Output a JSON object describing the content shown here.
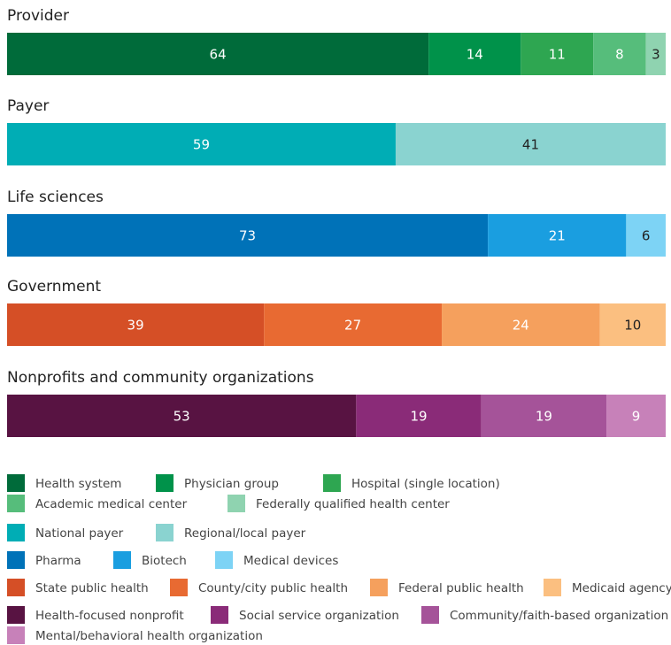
{
  "chart_data": [
    {
      "type": "bar",
      "title": "Provider",
      "xlim": [
        0,
        100
      ],
      "series": [
        {
          "name": "Health system",
          "color": "#006b3a",
          "values": [
            64
          ]
        },
        {
          "name": "Physician group",
          "color": "#00924a",
          "values": [
            14
          ]
        },
        {
          "name": "Hospital (single location)",
          "color": "#2ea651",
          "values": [
            11
          ]
        },
        {
          "name": "Academic medical center",
          "color": "#56bd7b",
          "values": [
            8
          ]
        },
        {
          "name": "Federally qualified health center",
          "color": "#8fd3b0",
          "values": [
            3
          ]
        }
      ]
    },
    {
      "type": "bar",
      "title": "Payer",
      "xlim": [
        0,
        100
      ],
      "series": [
        {
          "name": "National payer",
          "color": "#00adb5",
          "values": [
            59
          ]
        },
        {
          "name": "Regional/local payer",
          "color": "#8ad3d0",
          "values": [
            41
          ]
        }
      ]
    },
    {
      "type": "bar",
      "title": "Life sciences",
      "xlim": [
        0,
        100
      ],
      "series": [
        {
          "name": "Pharma",
          "color": "#0072b8",
          "values": [
            73
          ]
        },
        {
          "name": "Biotech",
          "color": "#1a9ee0",
          "values": [
            21
          ]
        },
        {
          "name": "Medical devices",
          "color": "#7dd3f5",
          "values": [
            6
          ]
        }
      ]
    },
    {
      "type": "bar",
      "title": "Government",
      "xlim": [
        0,
        100
      ],
      "series": [
        {
          "name": "State public health",
          "color": "#d54f26",
          "values": [
            39
          ]
        },
        {
          "name": "County/city public health",
          "color": "#e86a32",
          "values": [
            27
          ]
        },
        {
          "name": "Federal public health",
          "color": "#f5a05d",
          "values": [
            24
          ]
        },
        {
          "name": "Medicaid agency",
          "color": "#fbbf80",
          "values": [
            10
          ]
        }
      ]
    },
    {
      "type": "bar",
      "title": "Nonprofits and community organizations",
      "xlim": [
        0,
        100
      ],
      "series": [
        {
          "name": "Health-focused nonprofit",
          "color": "#581342",
          "values": [
            53
          ]
        },
        {
          "name": "Social service organization",
          "color": "#8a2b78",
          "values": [
            19
          ]
        },
        {
          "name": "Community/faith-based organization",
          "color": "#a55399",
          "values": [
            19
          ]
        },
        {
          "name": "Mental/behavioral health organization",
          "color": "#c781b9",
          "values": [
            9
          ]
        }
      ]
    }
  ]
}
